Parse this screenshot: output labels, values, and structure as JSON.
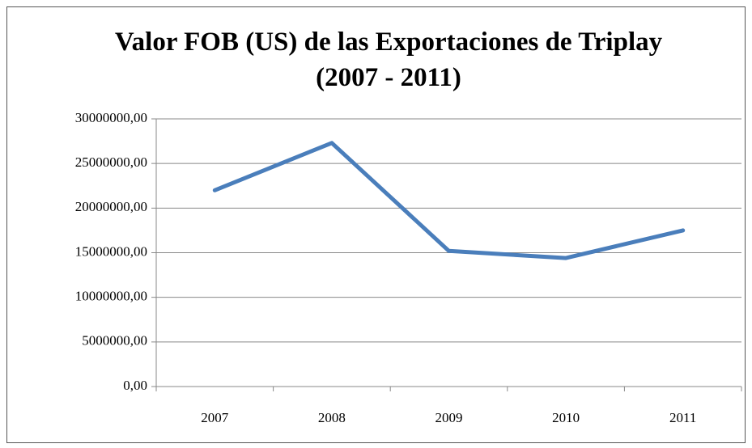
{
  "chart_data": {
    "type": "line",
    "title": "Valor FOB (US) de las Exportaciones de Triplay (2007 - 2011)",
    "categories": [
      "2007",
      "2008",
      "2009",
      "2010",
      "2011"
    ],
    "series": [
      {
        "name": "Valor FOB",
        "color": "#4a7ebb",
        "values": [
          22000000,
          27300000,
          15200000,
          14400000,
          17500000
        ]
      }
    ],
    "ylim": [
      0,
      30000000
    ],
    "yticks": [
      {
        "value": 0,
        "label": "0,00"
      },
      {
        "value": 5000000,
        "label": "5000000,00"
      },
      {
        "value": 10000000,
        "label": "10000000,00"
      },
      {
        "value": 15000000,
        "label": "15000000,00"
      },
      {
        "value": 20000000,
        "label": "20000000,00"
      },
      {
        "value": 25000000,
        "label": "25000000,00"
      },
      {
        "value": 30000000,
        "label": "30000000,00"
      }
    ],
    "grid": true
  }
}
